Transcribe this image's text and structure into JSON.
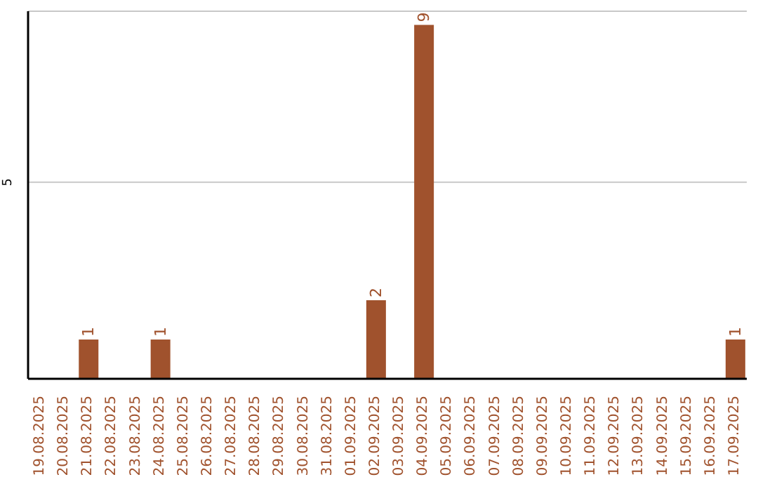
{
  "chart_data": {
    "type": "bar",
    "categories": [
      "19.08.2025",
      "20.08.2025",
      "21.08.2025",
      "22.08.2025",
      "23.08.2025",
      "24.08.2025",
      "25.08.2025",
      "26.08.2025",
      "27.08.2025",
      "28.08.2025",
      "29.08.2025",
      "30.08.2025",
      "31.08.2025",
      "01.09.2025",
      "02.09.2025",
      "03.09.2025",
      "04.09.2025",
      "05.09.2025",
      "06.09.2025",
      "07.09.2025",
      "08.09.2025",
      "09.09.2025",
      "10.09.2025",
      "11.09.2025",
      "12.09.2025",
      "13.09.2025",
      "14.09.2025",
      "15.09.2025",
      "16.09.2025",
      "17.09.2025"
    ],
    "values": [
      0,
      0,
      1,
      0,
      0,
      1,
      0,
      0,
      0,
      0,
      0,
      0,
      0,
      0,
      2,
      0,
      9,
      0,
      0,
      0,
      0,
      0,
      0,
      0,
      0,
      0,
      0,
      0,
      0,
      1
    ],
    "value_labels": [
      null,
      null,
      "1",
      null,
      null,
      "1",
      null,
      null,
      null,
      null,
      null,
      null,
      null,
      null,
      "2",
      null,
      "9",
      null,
      null,
      null,
      null,
      null,
      null,
      null,
      null,
      null,
      null,
      null,
      null,
      "1"
    ],
    "color": "#a0522d",
    "ylim": [
      0,
      9.35
    ],
    "yticks": [
      5
    ],
    "grid": "y",
    "legend": false
  }
}
